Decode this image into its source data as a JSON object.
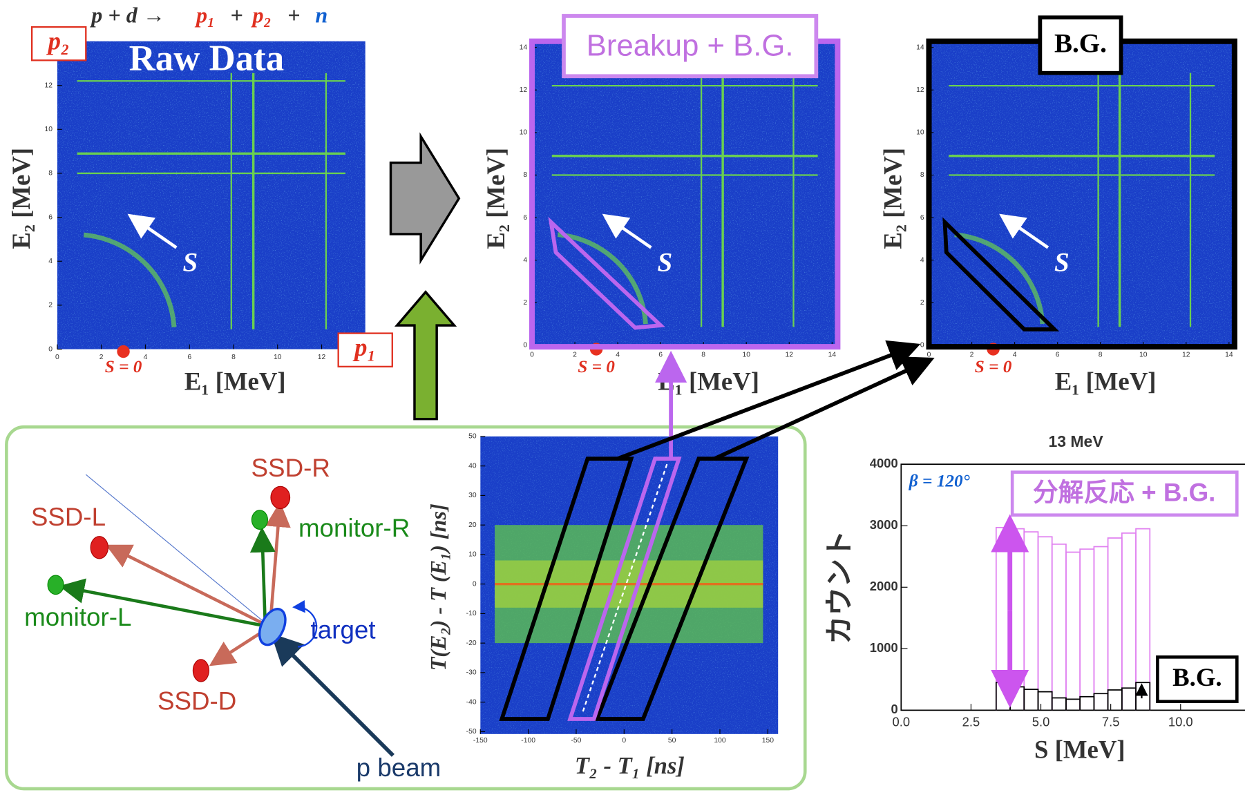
{
  "reaction": [
    "p + d →",
    "p₁",
    "+",
    "p₂",
    "+",
    "n"
  ],
  "panels": [
    {
      "title": "Raw Data",
      "tag_y": "p₂",
      "tag_x": "p₁",
      "s_label": "S",
      "s0": "S = 0",
      "xlabel": "E₁ [MeV]",
      "ylabel": "E₂ [MeV]",
      "xticks": [
        0,
        2,
        4,
        6,
        8,
        10,
        12
      ],
      "yticks": [
        0,
        2,
        4,
        6,
        8,
        10,
        12
      ]
    },
    {
      "title": "Breakup + B.G.",
      "s_label": "S",
      "s0": "S = 0",
      "xlabel": "E₁ [MeV]",
      "ylabel": "E₂ [MeV]",
      "xticks": [
        0,
        2,
        4,
        6,
        8,
        10,
        12,
        14
      ],
      "yticks": [
        0,
        2,
        4,
        6,
        8,
        10,
        12,
        14
      ]
    },
    {
      "title": "B.G.",
      "s_label": "S",
      "s0": "S = 0",
      "xlabel": "E₁ [MeV]",
      "ylabel": "E₂ [MeV]",
      "xticks": [
        0,
        2,
        4,
        6,
        8,
        10,
        12,
        14
      ],
      "yticks": [
        0,
        2,
        4,
        6,
        8,
        10,
        12,
        14
      ]
    }
  ],
  "setup": {
    "ssd_r": "SSD-R",
    "ssd_l": "SSD-L",
    "monitor_r": "monitor-R",
    "monitor_l": "monitor-L",
    "target": "target",
    "ssd_d": "SSD-D",
    "beam": "p beam"
  },
  "tof": {
    "xlabel": "T₂ - T₁ [ns]",
    "ylabel": "T(E₂) - T (E₁) [ns]",
    "xticks": [
      -150,
      -100,
      -50,
      0,
      50,
      100,
      150
    ],
    "yticks": [
      -50,
      -40,
      -30,
      -20,
      -10,
      0,
      10,
      20,
      30,
      40,
      50
    ]
  },
  "histogram": {
    "title": "13 MeV",
    "beta": "β = 120°",
    "legend": "分解反応 + B.G.",
    "bg_label": "B.G.",
    "ylabel": "カウント",
    "xlabel": "S [MeV]",
    "xticks": [
      {
        "value": 0,
        "label": "0.0"
      },
      {
        "value": 2.5,
        "label": "2.5"
      },
      {
        "value": 5,
        "label": "5.0"
      },
      {
        "value": 7.5,
        "label": "7.5"
      },
      {
        "value": 10,
        "label": "10.0"
      }
    ],
    "yticks": [
      0,
      1000,
      2000,
      3000,
      4000
    ],
    "xlim": [
      0,
      12.3
    ],
    "ylim": [
      0,
      4000
    ],
    "bins": [
      3.4,
      3.9,
      4.4,
      4.9,
      5.4,
      5.9,
      6.4,
      6.9,
      7.4,
      7.9,
      8.4,
      8.9
    ],
    "series": [
      {
        "name": "分解反応 + B.G.",
        "color": "#e080f0",
        "values": [
          2970,
          2950,
          2900,
          2820,
          2700,
          2570,
          2620,
          2660,
          2800,
          2880,
          2950
        ]
      },
      {
        "name": "B.G.",
        "color": "#000000",
        "values": [
          450,
          380,
          340,
          300,
          200,
          180,
          220,
          270,
          330,
          360,
          450
        ]
      }
    ]
  }
}
